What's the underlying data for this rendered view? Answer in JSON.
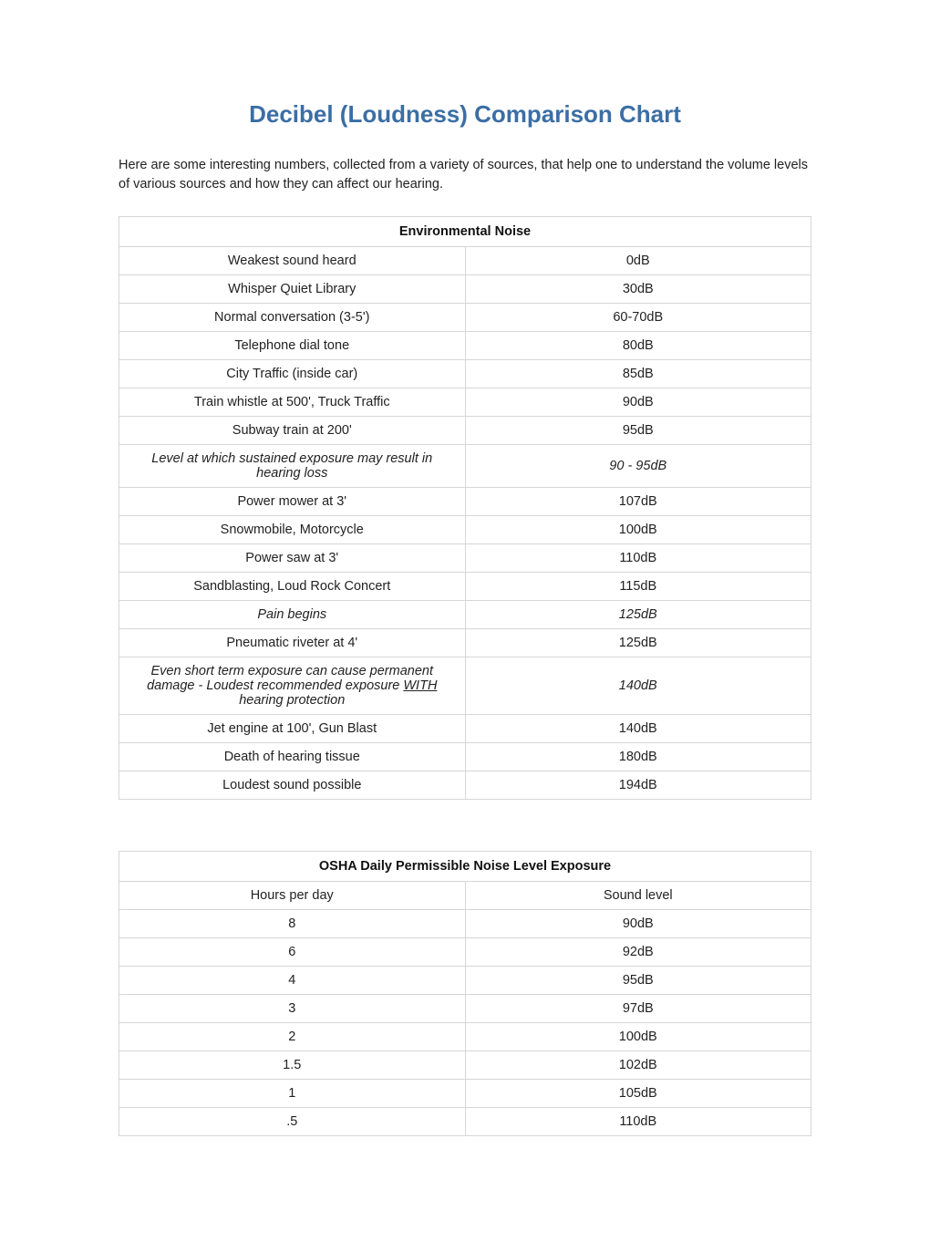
{
  "title": "Decibel (Loudness) Comparison Chart",
  "intro": "Here are some interesting numbers, collected from a variety of sources, that help one to understand the volume levels of various sources and how they can affect our hearing.",
  "colors": {
    "title": "#3b6ea5",
    "warn": "#e32219",
    "border": "#d6d6d6",
    "text": "#222222",
    "background": "#ffffff"
  },
  "typography": {
    "title_fontsize": 26,
    "body_fontsize": 14.5,
    "font_family": "Arial"
  },
  "env_table": {
    "header": "Environmental Noise",
    "rows": [
      {
        "label": "Weakest sound heard",
        "value": "0dB",
        "warn": false
      },
      {
        "label": "Whisper Quiet Library",
        "value": "30dB",
        "warn": false
      },
      {
        "label": "Normal conversation (3-5')",
        "value": "60-70dB",
        "warn": false
      },
      {
        "label": "Telephone dial tone",
        "value": "80dB",
        "warn": false
      },
      {
        "label": "City Traffic (inside car)",
        "value": "85dB",
        "warn": false
      },
      {
        "label": "Train whistle at 500', Truck Traffic",
        "value": "90dB",
        "warn": false
      },
      {
        "label": "Subway train at 200'",
        "value": "95dB",
        "warn": false
      },
      {
        "label": "Level at which sustained exposure may result in hearing loss",
        "value": "90 - 95dB",
        "warn": true
      },
      {
        "label": "Power mower at 3'",
        "value": "107dB",
        "warn": false
      },
      {
        "label": "Snowmobile, Motorcycle",
        "value": "100dB",
        "warn": false
      },
      {
        "label": "Power saw at 3'",
        "value": "110dB",
        "warn": false
      },
      {
        "label": "Sandblasting, Loud Rock Concert",
        "value": "115dB",
        "warn": false
      },
      {
        "label": "Pain begins",
        "value": "125dB",
        "warn": true
      },
      {
        "label": "Pneumatic riveter at 4'",
        "value": "125dB",
        "warn": false
      },
      {
        "label_pre": "Even short term exposure can cause permanent damage - Loudest recommended exposure ",
        "label_u": "WITH",
        "label_post": " hearing protection",
        "value": "140dB",
        "warn": true,
        "has_underline": true
      },
      {
        "label": "Jet engine at 100', Gun Blast",
        "value": "140dB",
        "warn": false
      },
      {
        "label": "Death of hearing tissue",
        "value": "180dB",
        "warn": false
      },
      {
        "label": "Loudest sound possible",
        "value": "194dB",
        "warn": false
      }
    ]
  },
  "osha_table": {
    "header": "OSHA Daily Permissible Noise Level Exposure",
    "col1": "Hours per day",
    "col2": "Sound level",
    "rows": [
      {
        "hours": "8",
        "level": "90dB"
      },
      {
        "hours": "6",
        "level": "92dB"
      },
      {
        "hours": "4",
        "level": "95dB"
      },
      {
        "hours": "3",
        "level": "97dB"
      },
      {
        "hours": "2",
        "level": "100dB"
      },
      {
        "hours": "1.5",
        "level": "102dB"
      },
      {
        "hours": "1",
        "level": "105dB"
      },
      {
        "hours": ".5",
        "level": "110dB"
      }
    ]
  }
}
